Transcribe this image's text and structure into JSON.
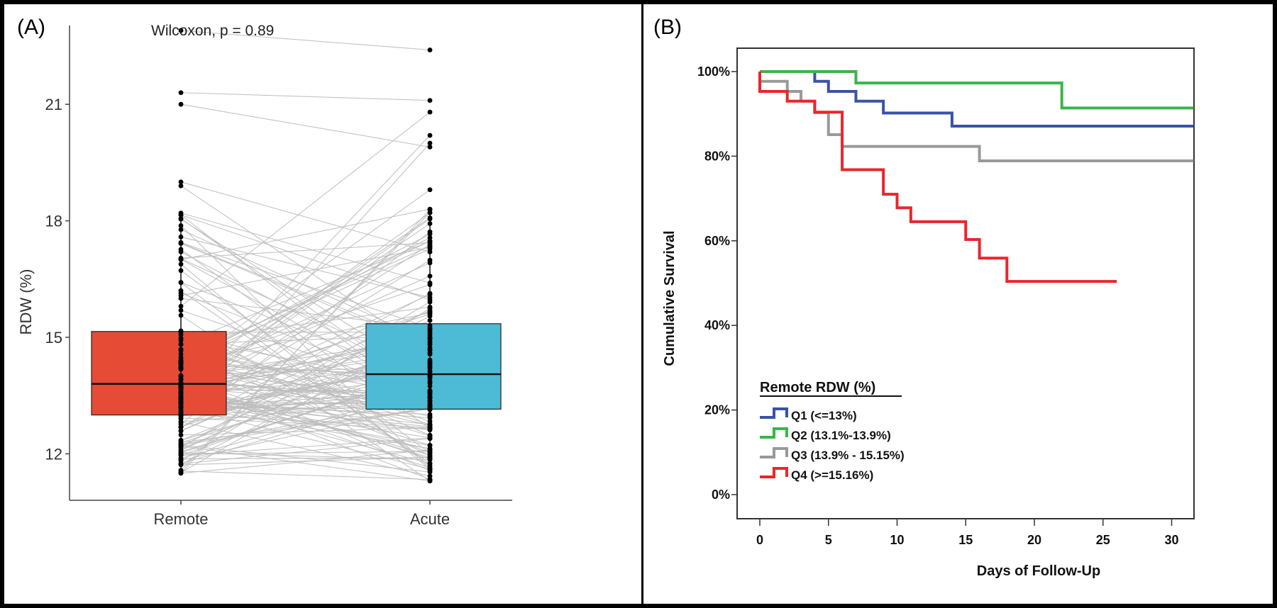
{
  "chart_data": [
    {
      "panel_label": "(A)",
      "type": "box",
      "title": "",
      "annotation": "Wilcoxon, p = 0.89",
      "xlabel": "",
      "ylabel": "RDW (%)",
      "categories": [
        "Remote",
        "Acute"
      ],
      "yticks": [
        12,
        15,
        18,
        21
      ],
      "ylim": [
        10.2,
        23.5
      ],
      "colors": {
        "Remote": "#E64B35",
        "Acute": "#4DBBD5",
        "paired_lines": "#BDBDBD",
        "points": "#000000"
      },
      "boxes": [
        {
          "category": "Remote",
          "q1": 13.0,
          "median": 13.8,
          "q3": 15.15,
          "whisker_low": 11.5,
          "whisker_high": 18.2,
          "outliers": [
            22.9,
            21.3,
            21.0,
            19.0,
            18.9
          ]
        },
        {
          "category": "Acute",
          "q1": 13.15,
          "median": 14.05,
          "q3": 15.35,
          "whisker_low": 11.3,
          "whisker_high": 18.3,
          "outliers": [
            22.4,
            21.1,
            20.8,
            20.2,
            20.0,
            19.9,
            18.8
          ]
        }
      ],
      "paired_lines_note": "individual patient values connected between Remote and Acute",
      "grid": false
    },
    {
      "panel_label": "(B)",
      "type": "line",
      "subtype": "kaplan-meier step",
      "title": "",
      "xlabel": "Days of Follow-Up",
      "ylabel": "Cumulative Survival",
      "xticks": [
        0,
        5,
        10,
        15,
        20,
        25,
        30
      ],
      "yticks": [
        0,
        20,
        40,
        60,
        80,
        100
      ],
      "ytick_labels": [
        "0%",
        "20%",
        "40%",
        "60%",
        "80%",
        "100%"
      ],
      "xlim": [
        -3.3,
        31.6
      ],
      "ylim": [
        -5.7,
        105.6
      ],
      "legend": {
        "title": "Remote RDW (%)",
        "placement": "bottom-left"
      },
      "grid": false,
      "series": [
        {
          "name": "Q1 (<=13%)",
          "color": "#3A53A4",
          "steps": [
            [
              0,
              100
            ],
            [
              4,
              97.7
            ],
            [
              5,
              95.3
            ],
            [
              7,
              93.0
            ],
            [
              9,
              90.2
            ],
            [
              14,
              87.1
            ]
          ],
          "end_day": 31.6
        },
        {
          "name": "Q2 (13.1%-13.9%)",
          "color": "#3AB54A",
          "steps": [
            [
              0,
              100
            ],
            [
              7,
              97.3
            ],
            [
              22,
              91.4
            ]
          ],
          "end_day": 31.6
        },
        {
          "name": "Q3 (13.9% - 15.15%)",
          "color": "#999999",
          "steps": [
            [
              0,
              97.7
            ],
            [
              2,
              95.3
            ],
            [
              3,
              93.0
            ],
            [
              4,
              90.3
            ],
            [
              5,
              85.1
            ],
            [
              6,
              82.3
            ],
            [
              16,
              78.9
            ]
          ],
          "end_day": 31.6
        },
        {
          "name": "Q4 (>=15.16%)",
          "color": "#E8262D",
          "steps": [
            [
              0,
              95.3
            ],
            [
              2,
              93.0
            ],
            [
              4,
              90.4
            ],
            [
              6,
              76.8
            ],
            [
              9,
              71.0
            ],
            [
              10,
              67.8
            ],
            [
              11,
              64.5
            ],
            [
              15,
              60.3
            ],
            [
              16,
              55.9
            ],
            [
              18,
              50.4
            ]
          ],
          "end_day": 26
        }
      ]
    }
  ]
}
